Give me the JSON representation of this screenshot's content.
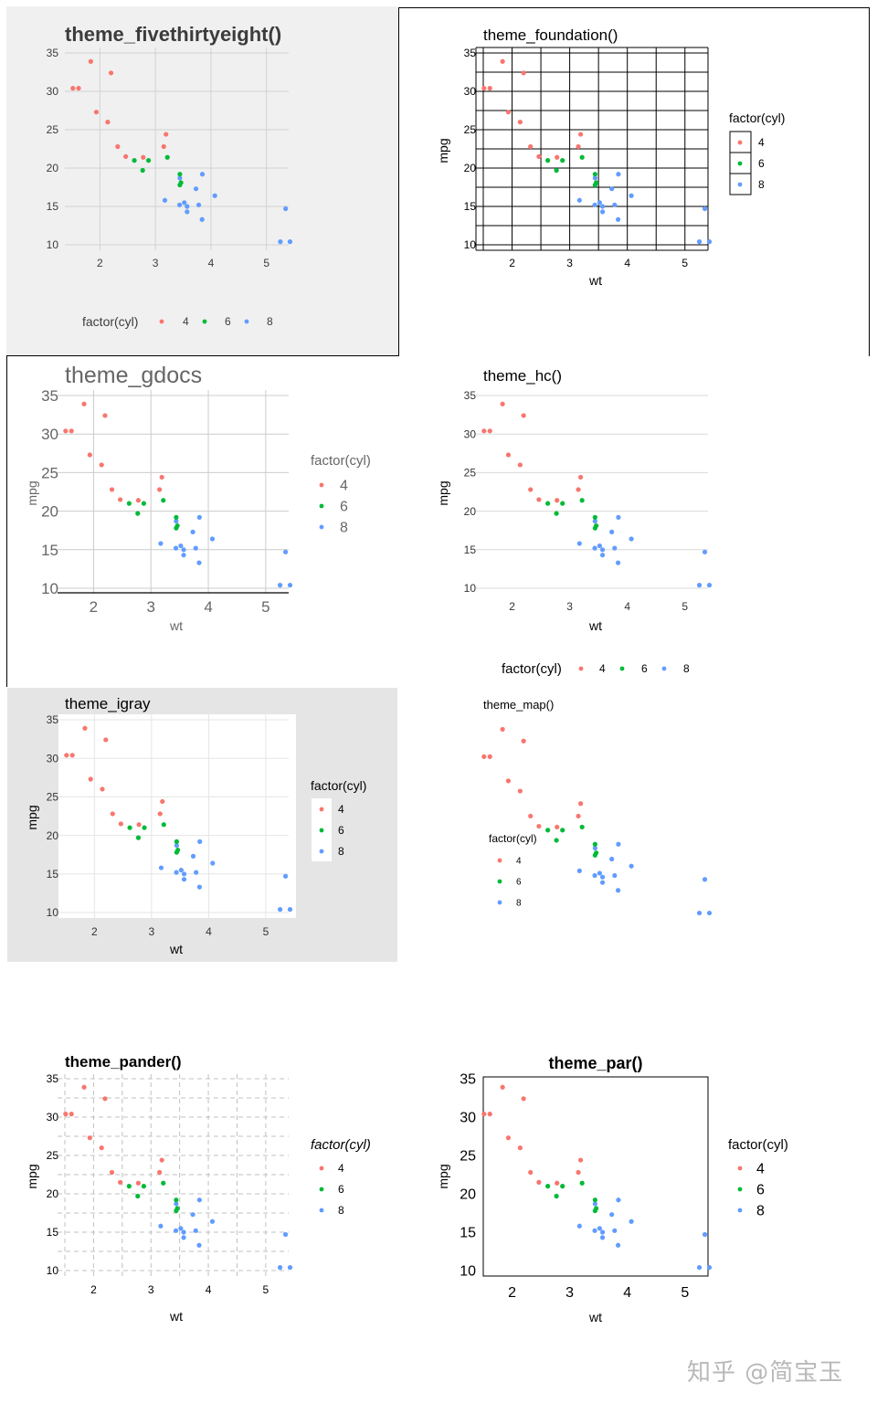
{
  "mtcars": {
    "wt": [
      2.62,
      2.875,
      2.32,
      3.215,
      3.44,
      3.46,
      3.57,
      3.19,
      3.15,
      3.44,
      3.44,
      4.07,
      3.73,
      3.78,
      5.25,
      5.424,
      5.345,
      2.2,
      1.615,
      1.835,
      2.465,
      3.52,
      3.435,
      3.84,
      3.845,
      1.935,
      2.14,
      1.513,
      3.17,
      2.77,
      3.57,
      2.78
    ],
    "mpg": [
      21,
      21,
      22.8,
      21.4,
      18.7,
      18.1,
      14.3,
      24.4,
      22.8,
      19.2,
      17.8,
      16.4,
      17.3,
      15.2,
      10.4,
      10.4,
      14.7,
      32.4,
      30.4,
      33.9,
      21.5,
      15.5,
      15.2,
      13.3,
      19.2,
      27.3,
      26,
      30.4,
      15.8,
      19.7,
      15,
      21.4
    ],
    "cyl": [
      6,
      6,
      4,
      6,
      8,
      6,
      8,
      4,
      4,
      6,
      6,
      8,
      8,
      8,
      8,
      8,
      8,
      4,
      4,
      4,
      4,
      8,
      8,
      8,
      8,
      4,
      4,
      4,
      8,
      6,
      8,
      4
    ]
  },
  "colors": {
    "4": "#f8766d",
    "6": "#00ba38",
    "8": "#619cff"
  },
  "chart_data": [
    {
      "type": "scatter",
      "theme": "fivethirtyeight",
      "title": "theme_fivethirtyeight()",
      "xlabel": "",
      "ylabel": "",
      "legend_title": "factor(cyl)",
      "legend_labels": [
        "4",
        "6",
        "8"
      ],
      "legend_position": "bottom",
      "x_ticks": [
        "2",
        "3",
        "4",
        "5"
      ],
      "y_ticks": [
        "10",
        "15",
        "20",
        "25",
        "30",
        "35"
      ],
      "grid": true
    },
    {
      "type": "scatter",
      "theme": "foundation",
      "title": "theme_foundation()",
      "xlabel": "wt",
      "ylabel": "mpg",
      "legend_title": "factor(cyl)",
      "legend_labels": [
        "4",
        "6",
        "8"
      ],
      "legend_position": "right",
      "x_ticks": [
        "2",
        "3",
        "4",
        "5"
      ],
      "y_ticks": [
        "10",
        "15",
        "20",
        "25",
        "30",
        "35"
      ],
      "grid": true
    },
    {
      "type": "scatter",
      "theme": "gdocs",
      "title": "theme_gdocs",
      "xlabel": "wt",
      "ylabel": "mpg",
      "legend_title": "factor(cyl)",
      "legend_labels": [
        "4",
        "6",
        "8"
      ],
      "legend_position": "right",
      "x_ticks": [
        "2",
        "3",
        "4",
        "5"
      ],
      "y_ticks": [
        "10",
        "15",
        "20",
        "25",
        "30",
        "35"
      ],
      "grid": true
    },
    {
      "type": "scatter",
      "theme": "hc",
      "title": "theme_hc()",
      "xlabel": "wt",
      "ylabel": "mpg",
      "legend_title": "factor(cyl)",
      "legend_labels": [
        "4",
        "6",
        "8"
      ],
      "legend_position": "bottom",
      "x_ticks": [
        "2",
        "3",
        "4",
        "5"
      ],
      "y_ticks": [
        "10",
        "15",
        "20",
        "25",
        "30",
        "35"
      ],
      "grid": true
    },
    {
      "type": "scatter",
      "theme": "igray",
      "title": "theme_igray",
      "xlabel": "wt",
      "ylabel": "mpg",
      "legend_title": "factor(cyl)",
      "legend_labels": [
        "4",
        "6",
        "8"
      ],
      "legend_position": "right",
      "x_ticks": [
        "2",
        "3",
        "4",
        "5"
      ],
      "y_ticks": [
        "10",
        "15",
        "20",
        "25",
        "30",
        "35"
      ],
      "grid": true
    },
    {
      "type": "scatter",
      "theme": "map",
      "title": "theme_map()",
      "xlabel": "",
      "ylabel": "",
      "legend_title": "factor(cyl)",
      "legend_labels": [
        "4",
        "6",
        "8"
      ],
      "legend_position": "inside-left",
      "x_ticks": [],
      "y_ticks": [],
      "grid": false
    },
    {
      "type": "scatter",
      "theme": "pander",
      "title": "theme_pander()",
      "xlabel": "wt",
      "ylabel": "mpg",
      "legend_title": "factor(cyl)",
      "legend_labels": [
        "4",
        "6",
        "8"
      ],
      "legend_position": "right",
      "x_ticks": [
        "2",
        "3",
        "4",
        "5"
      ],
      "y_ticks": [
        "10",
        "15",
        "20",
        "25",
        "30",
        "35"
      ],
      "grid": true
    },
    {
      "type": "scatter",
      "theme": "par",
      "title": "theme_par()",
      "xlabel": "wt",
      "ylabel": "mpg",
      "legend_title": "factor(cyl)",
      "legend_labels": [
        "4",
        "6",
        "8"
      ],
      "legend_position": "right",
      "x_ticks": [
        "2",
        "3",
        "4",
        "5"
      ],
      "y_ticks": [
        "10",
        "15",
        "20",
        "25",
        "30",
        "35"
      ],
      "grid": false
    }
  ],
  "watermark": "知乎 @简宝玉"
}
